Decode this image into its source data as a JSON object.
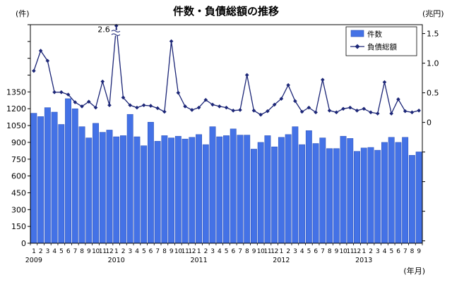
{
  "chart_data": {
    "type": "bar",
    "title": "件数・負債総額の推移",
    "left_axis_unit": "(件)",
    "right_axis_unit": "(兆円)",
    "x_axis_unit": "(年月)",
    "years": [
      {
        "year": "2009",
        "months": [
          "1",
          "2",
          "3",
          "4",
          "5",
          "6",
          "7",
          "8",
          "9",
          "10",
          "11",
          "12"
        ]
      },
      {
        "year": "2010",
        "months": [
          "1",
          "2",
          "3",
          "4",
          "5",
          "6",
          "7",
          "8",
          "9",
          "10",
          "11",
          "12"
        ]
      },
      {
        "year": "2011",
        "months": [
          "1",
          "2",
          "3",
          "4",
          "5",
          "6",
          "7",
          "8",
          "9",
          "10",
          "11",
          "12"
        ]
      },
      {
        "year": "2012",
        "months": [
          "1",
          "2",
          "3",
          "4",
          "5",
          "6",
          "7",
          "8",
          "9",
          "10",
          "11",
          "12"
        ]
      },
      {
        "year": "2013",
        "months": [
          "1",
          "2",
          "3",
          "4",
          "5",
          "6",
          "7",
          "8",
          "9"
        ]
      }
    ],
    "series": [
      {
        "name": "件数",
        "type": "bar",
        "color": "#4472e6",
        "values": [
          1160,
          1130,
          1210,
          1170,
          1060,
          1290,
          1200,
          1040,
          940,
          1070,
          990,
          1010,
          950,
          960,
          1150,
          950,
          870,
          1080,
          910,
          960,
          940,
          955,
          930,
          945,
          970,
          880,
          1040,
          950,
          960,
          1020,
          965,
          965,
          840,
          900,
          960,
          860,
          945,
          970,
          1040,
          880,
          1005,
          890,
          940,
          845,
          845,
          955,
          935,
          820,
          850,
          855,
          830,
          900,
          945,
          900,
          945,
          785,
          815
        ]
      },
      {
        "name": "負債総額",
        "type": "line",
        "color": "#1c2677",
        "values": [
          0.87,
          1.21,
          1.04,
          0.51,
          0.51,
          0.47,
          0.34,
          0.27,
          0.35,
          0.25,
          0.69,
          0.29,
          2.6,
          0.42,
          0.29,
          0.25,
          0.29,
          0.28,
          0.24,
          0.18,
          1.37,
          0.5,
          0.27,
          0.21,
          0.25,
          0.38,
          0.3,
          0.27,
          0.25,
          0.2,
          0.21,
          0.8,
          0.2,
          0.13,
          0.19,
          0.3,
          0.4,
          0.63,
          0.36,
          0.18,
          0.25,
          0.17,
          0.72,
          0.2,
          0.17,
          0.23,
          0.25,
          0.2,
          0.23,
          0.17,
          0.15,
          0.68,
          0.15,
          0.39,
          0.19,
          0.17,
          0.2
        ]
      }
    ],
    "y_left": {
      "range": [
        0,
        1950
      ],
      "tick_step": 150,
      "tick_labels": [
        "0",
        "150",
        "300",
        "450",
        "600",
        "750",
        "900",
        "1050",
        "1200",
        "1350"
      ]
    },
    "y_right": {
      "range": [
        -2.04,
        1.65
      ],
      "tick_step": 0.5,
      "tick_labels": [
        "0",
        "0.5",
        "1.0",
        "1.5"
      ]
    },
    "annotations": [
      {
        "text": "2.6",
        "year": "2010",
        "month": "1"
      }
    ],
    "legend": "top-right",
    "grid": false
  }
}
